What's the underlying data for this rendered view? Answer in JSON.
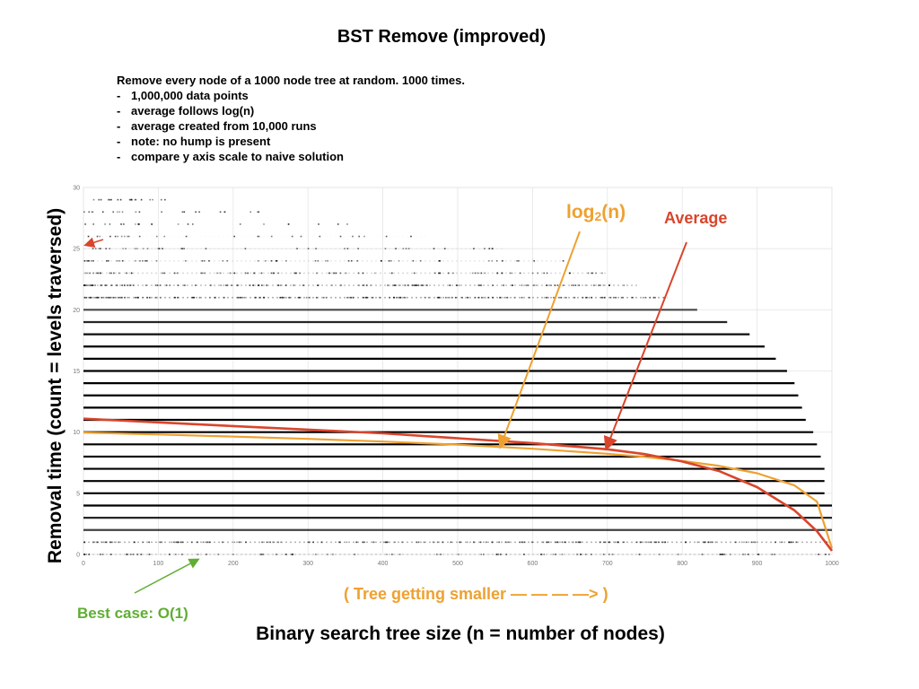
{
  "page": {
    "title": "BST Remove (improved)",
    "notes_intro": "Remove every node of a 1000 node tree at random. 1000 times.",
    "notes": [
      "1,000,000 data points",
      "average follows log(n)",
      "average created from 10,000 runs",
      "note: no hump is present",
      "compare y axis scale to naive solution"
    ]
  },
  "chart_data": {
    "type": "scatter",
    "xlabel": "Binary search tree size (n = number of nodes)",
    "ylabel": "Removal time (count = levels traversed)",
    "xlim": [
      0,
      1000
    ],
    "ylim": [
      0,
      30
    ],
    "x_ticks": [
      0,
      100,
      200,
      300,
      400,
      500,
      600,
      700,
      800,
      900,
      1000
    ],
    "y_ticks": [
      0,
      5,
      10,
      15,
      20,
      25,
      30
    ],
    "grid": true,
    "scatter_bands": [
      {
        "y": 0,
        "density": 0.25
      },
      {
        "y": 1,
        "density": 0.55
      },
      {
        "y": 2,
        "density": 0.75
      },
      {
        "y": 3,
        "density": 0.85
      },
      {
        "y": 4,
        "density": 1.0
      },
      {
        "y": 5,
        "density": 1.0
      },
      {
        "y": 6,
        "density": 1.0
      },
      {
        "y": 7,
        "density": 1.0
      },
      {
        "y": 8,
        "density": 1.0
      },
      {
        "y": 9,
        "density": 1.0
      },
      {
        "y": 10,
        "density": 1.0
      },
      {
        "y": 11,
        "density": 1.0
      },
      {
        "y": 12,
        "density": 1.0
      },
      {
        "y": 13,
        "density": 1.0
      },
      {
        "y": 14,
        "density": 1.0
      },
      {
        "y": 15,
        "density": 1.0
      },
      {
        "y": 16,
        "density": 1.0
      },
      {
        "y": 17,
        "density": 1.0
      },
      {
        "y": 18,
        "density": 0.95
      },
      {
        "y": 19,
        "density": 0.85
      },
      {
        "y": 20,
        "density": 0.7
      },
      {
        "y": 21,
        "density": 0.55
      },
      {
        "y": 22,
        "density": 0.4
      },
      {
        "y": 23,
        "density": 0.25
      },
      {
        "y": 24,
        "density": 0.14
      },
      {
        "y": 25,
        "density": 0.07
      },
      {
        "y": 26,
        "density": 0.03
      },
      {
        "y": 27,
        "density": 0.015
      },
      {
        "y": 28,
        "density": 0.008
      },
      {
        "y": 29,
        "density": 0.004
      }
    ],
    "scatter_band_extent": [
      {
        "y": 0,
        "x_max": 1000
      },
      {
        "y": 1,
        "x_max": 1000
      },
      {
        "y": 2,
        "x_max": 1000
      },
      {
        "y": 3,
        "x_max": 1000
      },
      {
        "y": 4,
        "x_max": 1000
      },
      {
        "y": 5,
        "x_max": 990
      },
      {
        "y": 6,
        "x_max": 990
      },
      {
        "y": 7,
        "x_max": 990
      },
      {
        "y": 8,
        "x_max": 985
      },
      {
        "y": 9,
        "x_max": 980
      },
      {
        "y": 10,
        "x_max": 975
      },
      {
        "y": 11,
        "x_max": 965
      },
      {
        "y": 12,
        "x_max": 960
      },
      {
        "y": 13,
        "x_max": 955
      },
      {
        "y": 14,
        "x_max": 950
      },
      {
        "y": 15,
        "x_max": 940
      },
      {
        "y": 16,
        "x_max": 925
      },
      {
        "y": 17,
        "x_max": 910
      },
      {
        "y": 18,
        "x_max": 890
      },
      {
        "y": 19,
        "x_max": 860
      },
      {
        "y": 20,
        "x_max": 820
      },
      {
        "y": 21,
        "x_max": 780
      },
      {
        "y": 22,
        "x_max": 740
      },
      {
        "y": 23,
        "x_max": 700
      },
      {
        "y": 24,
        "x_max": 640
      },
      {
        "y": 25,
        "x_max": 560
      },
      {
        "y": 26,
        "x_max": 460
      },
      {
        "y": 27,
        "x_max": 360
      },
      {
        "y": 28,
        "x_max": 240
      },
      {
        "y": 29,
        "x_max": 120
      }
    ],
    "series": [
      {
        "name": "Average",
        "color": "#d9452c",
        "x": [
          0,
          100,
          200,
          300,
          400,
          500,
          600,
          700,
          750,
          800,
          850,
          900,
          950,
          980,
          1000
        ],
        "y": [
          11.1,
          10.8,
          10.5,
          10.2,
          9.9,
          9.5,
          9.1,
          8.6,
          8.2,
          7.6,
          6.8,
          5.5,
          3.6,
          1.9,
          0.3
        ]
      },
      {
        "name": "log2(n)",
        "color": "#eea131",
        "x": [
          0,
          100,
          200,
          300,
          400,
          500,
          600,
          700,
          750,
          800,
          850,
          900,
          950,
          980,
          1000
        ],
        "y": [
          9.97,
          9.81,
          9.64,
          9.45,
          9.23,
          8.97,
          8.64,
          8.23,
          7.97,
          7.64,
          7.23,
          6.64,
          5.64,
          4.32,
          0.5
        ]
      }
    ],
    "annotations": {
      "log_label_base": "log",
      "log_label_sub": "2",
      "log_label_tail": "(n)",
      "average_label": "Average",
      "best_case": "Best case: O(1)",
      "tree_smaller": "( Tree getting smaller — — — —> )"
    },
    "colors": {
      "average": "#d9452c",
      "log": "#eea131",
      "best_case": "#5fae33",
      "scatter": "#000000",
      "grid": "#e5e5e5"
    }
  }
}
